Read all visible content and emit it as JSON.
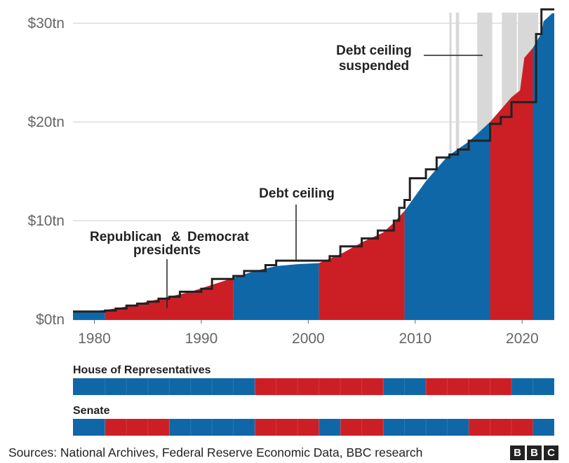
{
  "chart_data": {
    "type": "area",
    "xlim": [
      1978,
      2023
    ],
    "ylim": [
      0,
      31.5
    ],
    "y_ticks": [
      {
        "value": 0,
        "label": "$0tn"
      },
      {
        "value": 10,
        "label": "$10tn"
      },
      {
        "value": 20,
        "label": "$20tn"
      },
      {
        "value": 30,
        "label": "$30tn"
      }
    ],
    "x_ticks": [
      {
        "value": 1980,
        "label": "1980"
      },
      {
        "value": 1990,
        "label": "1990"
      },
      {
        "value": 2000,
        "label": "2000"
      },
      {
        "value": 2010,
        "label": "2010"
      },
      {
        "value": 2020,
        "label": "2020"
      }
    ],
    "grid": true,
    "colors": {
      "republican": "#cc1f25",
      "democrat": "#0f67a8",
      "ceiling": "#222222",
      "suspended": "#d8d8d8"
    },
    "debt": [
      [
        1978,
        0.75
      ],
      [
        1980,
        0.85
      ],
      [
        1981,
        0.95
      ],
      [
        1983,
        1.3
      ],
      [
        1985,
        1.8
      ],
      [
        1987,
        2.3
      ],
      [
        1989,
        2.8
      ],
      [
        1991,
        3.5
      ],
      [
        1993,
        4.2
      ],
      [
        1995,
        4.9
      ],
      [
        1997,
        5.4
      ],
      [
        1999,
        5.6
      ],
      [
        2001,
        5.7
      ],
      [
        2003,
        6.6
      ],
      [
        2005,
        7.8
      ],
      [
        2007,
        8.8
      ],
      [
        2008,
        9.8
      ],
      [
        2009,
        11.0
      ],
      [
        2011,
        14.0
      ],
      [
        2013,
        16.5
      ],
      [
        2015,
        18.0
      ],
      [
        2016,
        19.0
      ],
      [
        2017,
        20.0
      ],
      [
        2019,
        22.5
      ],
      [
        2019.8,
        23.2
      ],
      [
        2020.2,
        26.5
      ],
      [
        2021,
        27.5
      ],
      [
        2021.8,
        29.0
      ],
      [
        2022,
        30.2
      ],
      [
        2022.8,
        31.0
      ]
    ],
    "presidents": [
      {
        "party": "democrat",
        "start": 1978,
        "end": 1981
      },
      {
        "party": "republican",
        "start": 1981,
        "end": 1993
      },
      {
        "party": "democrat",
        "start": 1993,
        "end": 2001
      },
      {
        "party": "republican",
        "start": 2001,
        "end": 2009
      },
      {
        "party": "democrat",
        "start": 2009,
        "end": 2017
      },
      {
        "party": "republican",
        "start": 2017,
        "end": 2021
      },
      {
        "party": "democrat",
        "start": 2021,
        "end": 2023
      }
    ],
    "ceiling": [
      [
        1978,
        0.8
      ],
      [
        1981,
        0.9
      ],
      [
        1982,
        1.1
      ],
      [
        1983,
        1.4
      ],
      [
        1984,
        1.6
      ],
      [
        1985,
        1.8
      ],
      [
        1986,
        2.1
      ],
      [
        1987,
        2.3
      ],
      [
        1988,
        2.8
      ],
      [
        1990,
        3.1
      ],
      [
        1991,
        4.1
      ],
      [
        1993,
        4.4
      ],
      [
        1994,
        4.9
      ],
      [
        1996,
        5.5
      ],
      [
        1997,
        5.95
      ],
      [
        2002,
        6.4
      ],
      [
        2003,
        7.4
      ],
      [
        2005,
        8.2
      ],
      [
        2006.5,
        9.0
      ],
      [
        2008,
        10.0
      ],
      [
        2008.5,
        11.3
      ],
      [
        2009,
        12.1
      ],
      [
        2009.5,
        14.3
      ],
      [
        2011,
        15.2
      ],
      [
        2012,
        16.4
      ],
      [
        2013.2,
        16.7
      ],
      [
        2014,
        17.2
      ],
      [
        2015,
        18.1
      ],
      [
        2016.5,
        18.1
      ],
      [
        2017,
        19.8
      ],
      [
        2018,
        20.5
      ],
      [
        2019,
        22.0
      ],
      [
        2021,
        22.0
      ],
      [
        2021.3,
        28.9
      ],
      [
        2021.8,
        31.4
      ],
      [
        2023,
        31.4
      ]
    ],
    "suspended": [
      [
        2013.2,
        2013.4
      ],
      [
        2013.8,
        2014.1
      ],
      [
        2015.8,
        2017.2
      ],
      [
        2018.1,
        2019.5
      ],
      [
        2019.6,
        2021.5
      ]
    ],
    "annotations": {
      "debt_ceiling": "Debt ceiling",
      "suspended_line1": "Debt ceiling",
      "suspended_line2": "suspended",
      "republican": "Republican",
      "amp": "&",
      "democrat": "Democrat",
      "presidents": "presidents"
    },
    "strips": [
      {
        "title": "House of Representatives",
        "segments": [
          {
            "party": "democrat",
            "start": 1978,
            "end": 1995
          },
          {
            "party": "republican",
            "start": 1995,
            "end": 2007
          },
          {
            "party": "democrat",
            "start": 2007,
            "end": 2011
          },
          {
            "party": "republican",
            "start": 2011,
            "end": 2019
          },
          {
            "party": "democrat",
            "start": 2019,
            "end": 2023
          }
        ]
      },
      {
        "title": "Senate",
        "segments": [
          {
            "party": "democrat",
            "start": 1978,
            "end": 1981
          },
          {
            "party": "republican",
            "start": 1981,
            "end": 1987
          },
          {
            "party": "democrat",
            "start": 1987,
            "end": 1995
          },
          {
            "party": "republican",
            "start": 1995,
            "end": 2001
          },
          {
            "party": "democrat",
            "start": 2001,
            "end": 2003
          },
          {
            "party": "republican",
            "start": 2003,
            "end": 2007
          },
          {
            "party": "democrat",
            "start": 2007,
            "end": 2015
          },
          {
            "party": "republican",
            "start": 2015,
            "end": 2021
          },
          {
            "party": "democrat",
            "start": 2021,
            "end": 2023
          }
        ]
      }
    ]
  },
  "footer": {
    "sources": "Sources: National Archives, Federal Reserve Economic Data, BBC research",
    "logo": [
      "B",
      "B",
      "C"
    ]
  }
}
